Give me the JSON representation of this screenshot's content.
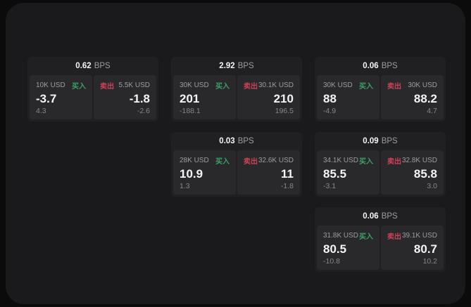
{
  "labels": {
    "bps_unit": "BPS",
    "buy": "买入",
    "sell": "卖出"
  },
  "colors": {
    "background_outer": "#0b0b0c",
    "background_panel": "#1a1a1c",
    "card_background": "#202023",
    "side_panel_background": "#29292c",
    "buy_accent": "#3da066",
    "sell_accent": "#cd4258",
    "value_text": "#f5f5f6",
    "label_text": "#9d9da1"
  },
  "columns": [
    {
      "cards": [
        {
          "bps": "0.62",
          "buy": {
            "size": "10K USD",
            "price": "-3.7",
            "delta": "4.3"
          },
          "sell": {
            "size": "5.5K USD",
            "price": "-1.8",
            "delta": "-2.6"
          }
        }
      ]
    },
    {
      "cards": [
        {
          "bps": "2.92",
          "buy": {
            "size": "30K USD",
            "price": "201",
            "delta": "-188.1"
          },
          "sell": {
            "size": "30.1K USD",
            "price": "210",
            "delta": "196.5"
          }
        },
        {
          "bps": "0.03",
          "buy": {
            "size": "28K USD",
            "price": "10.9",
            "delta": "1.3"
          },
          "sell": {
            "size": "32.6K USD",
            "price": "11",
            "delta": "-1.8"
          }
        }
      ]
    },
    {
      "cards": [
        {
          "bps": "0.06",
          "buy": {
            "size": "30K USD",
            "price": "88",
            "delta": "-4.9"
          },
          "sell": {
            "size": "30K USD",
            "price": "88.2",
            "delta": "4.7"
          }
        },
        {
          "bps": "0.09",
          "buy": {
            "size": "34.1K USD",
            "price": "85.5",
            "delta": "-3.1"
          },
          "sell": {
            "size": "32.8K USD",
            "price": "85.8",
            "delta": "3.0"
          }
        },
        {
          "bps": "0.06",
          "buy": {
            "size": "31.8K USD",
            "price": "80.5",
            "delta": "-10.8"
          },
          "sell": {
            "size": "39.1K USD",
            "price": "80.7",
            "delta": "10.2"
          }
        }
      ]
    }
  ]
}
